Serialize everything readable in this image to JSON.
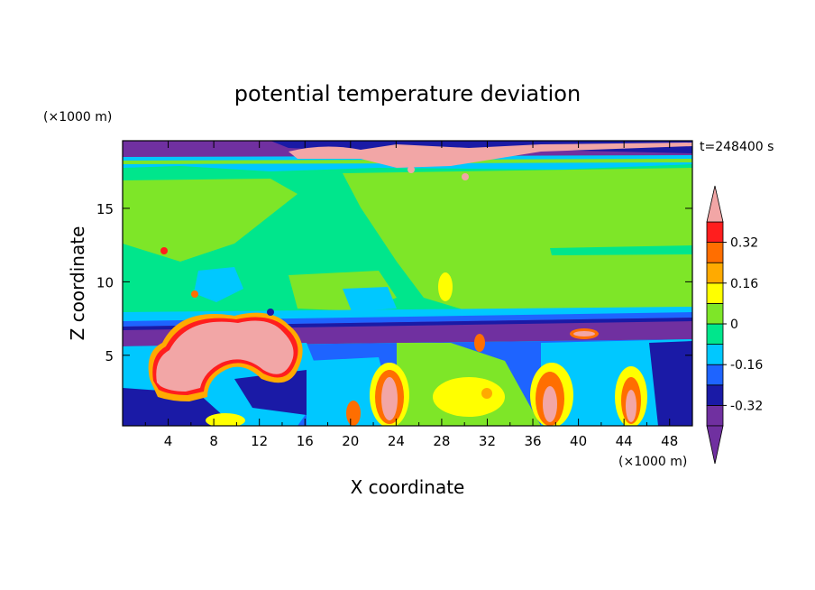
{
  "chart_data": {
    "type": "heatmap",
    "title": "potential temperature deviation",
    "xlabel": "X coordinate",
    "ylabel": "Z coordinate",
    "x_unit": "(×1000 m)",
    "y_unit": "(×1000 m)",
    "time_label": "t=248400 s",
    "xlim": [
      0,
      50
    ],
    "ylim": [
      0.2,
      19.6
    ],
    "x_ticks": [
      "4",
      "8",
      "12",
      "16",
      "20",
      "24",
      "28",
      "32",
      "36",
      "40",
      "44",
      "48"
    ],
    "x_tick_values": [
      4,
      8,
      12,
      16,
      20,
      24,
      28,
      32,
      36,
      40,
      44,
      48
    ],
    "y_ticks": [
      "5",
      "10",
      "15"
    ],
    "y_tick_values": [
      5,
      10,
      15
    ],
    "colorbar": {
      "levels": [
        -0.4,
        -0.32,
        -0.24,
        -0.16,
        -0.08,
        0,
        0.08,
        0.16,
        0.24,
        0.32,
        0.4
      ],
      "tick_labels": [
        "0.32",
        "0.16",
        "0",
        "-0.16",
        "-0.32"
      ],
      "tick_values": [
        0.32,
        0.16,
        0,
        -0.16,
        -0.32
      ],
      "bands_low_to_high": [
        "#7030a0",
        "#1a1aa6",
        "#1e64ff",
        "#00c8ff",
        "#00e68c",
        "#7ee628",
        "#ffff00",
        "#ffaa00",
        "#ff6e00",
        "#ff1e1e",
        "#f2a6a6"
      ]
    },
    "regions": [
      {
        "level": "lowest",
        "desc": "stratosphere top band"
      },
      {
        "level": "lowest",
        "desc": "tropopause band near z=7"
      },
      {
        "level": "near-zero",
        "desc": "upper troposphere"
      },
      {
        "level": "positive",
        "desc": "low-level warm anomalies"
      }
    ]
  }
}
